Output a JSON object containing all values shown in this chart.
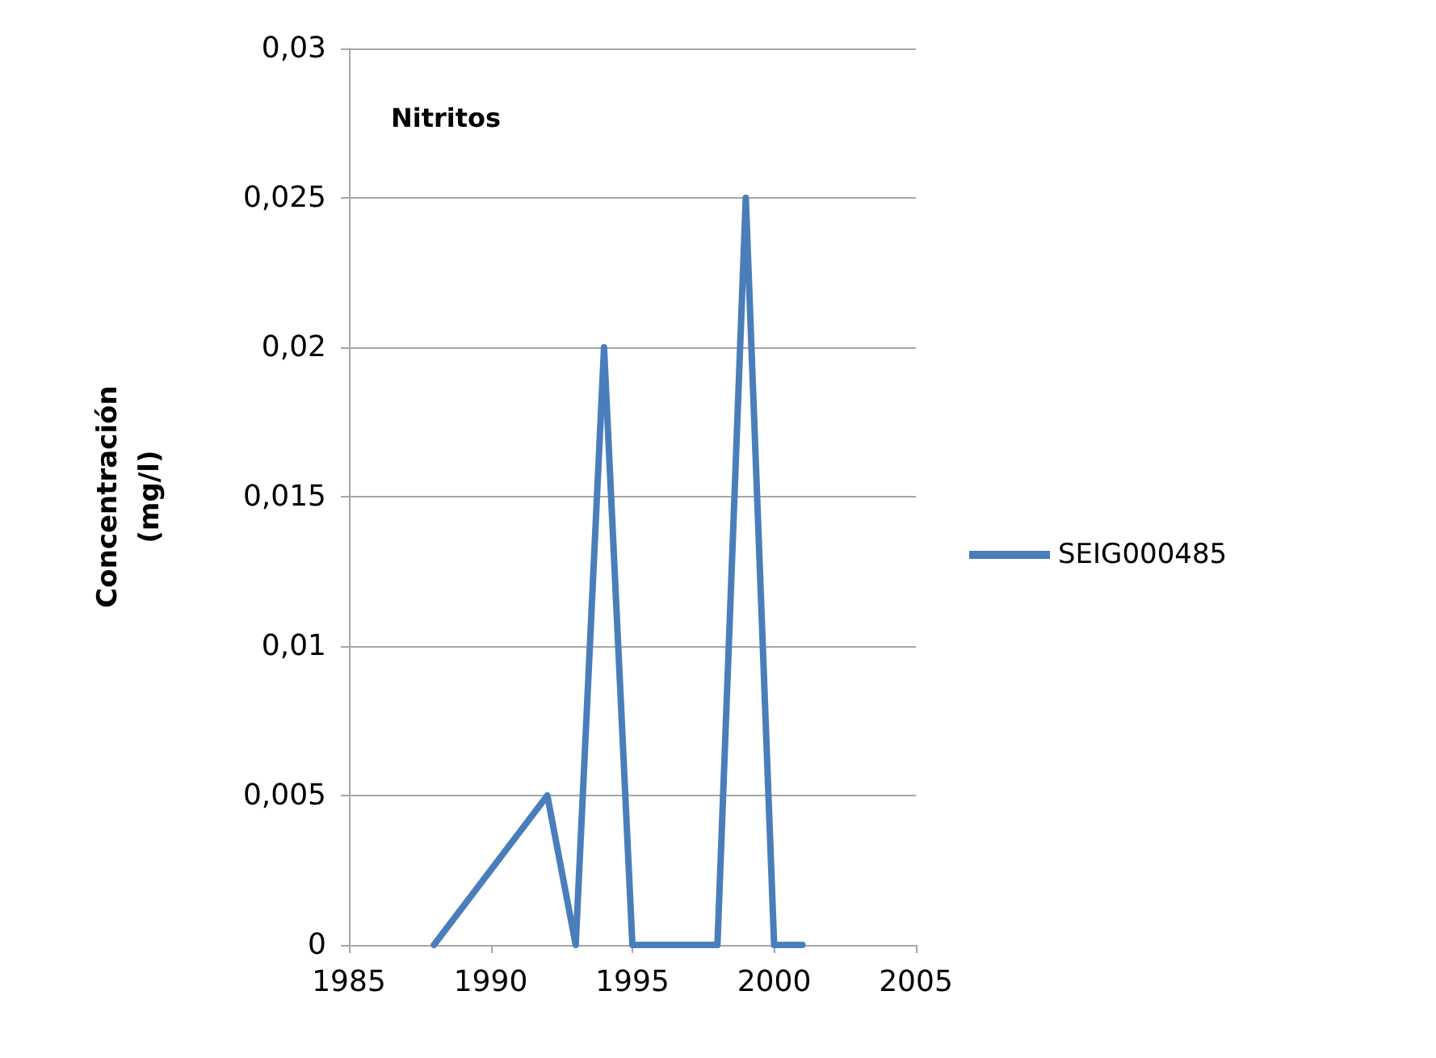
{
  "chart_data": {
    "type": "line",
    "title": "Nitritos",
    "ylabel": "Concentración\n(mg/l)",
    "x": [
      1988,
      1992,
      1993,
      1994,
      1995,
      1998,
      1999,
      2000,
      2001
    ],
    "series": [
      {
        "name": "SEIG000485",
        "color": "#4a7ebb",
        "values": [
          0,
          0.005,
          0,
          0.02,
          0,
          0,
          0.025,
          0,
          0
        ]
      }
    ],
    "xlim": [
      1985,
      2005
    ],
    "xticks": [
      1985,
      1990,
      1995,
      2000,
      2005
    ],
    "ylim": [
      0,
      0.03
    ],
    "yticks": [
      {
        "value": 0,
        "label": "0"
      },
      {
        "value": 0.005,
        "label": "0,005"
      },
      {
        "value": 0.01,
        "label": "0,01"
      },
      {
        "value": 0.015,
        "label": "0,015"
      },
      {
        "value": 0.02,
        "label": "0,02"
      },
      {
        "value": 0.025,
        "label": "0,025"
      },
      {
        "value": 0.03,
        "label": "0,03"
      }
    ],
    "grid": "y",
    "legend": "right",
    "marker": "none",
    "line_style": "solid"
  }
}
